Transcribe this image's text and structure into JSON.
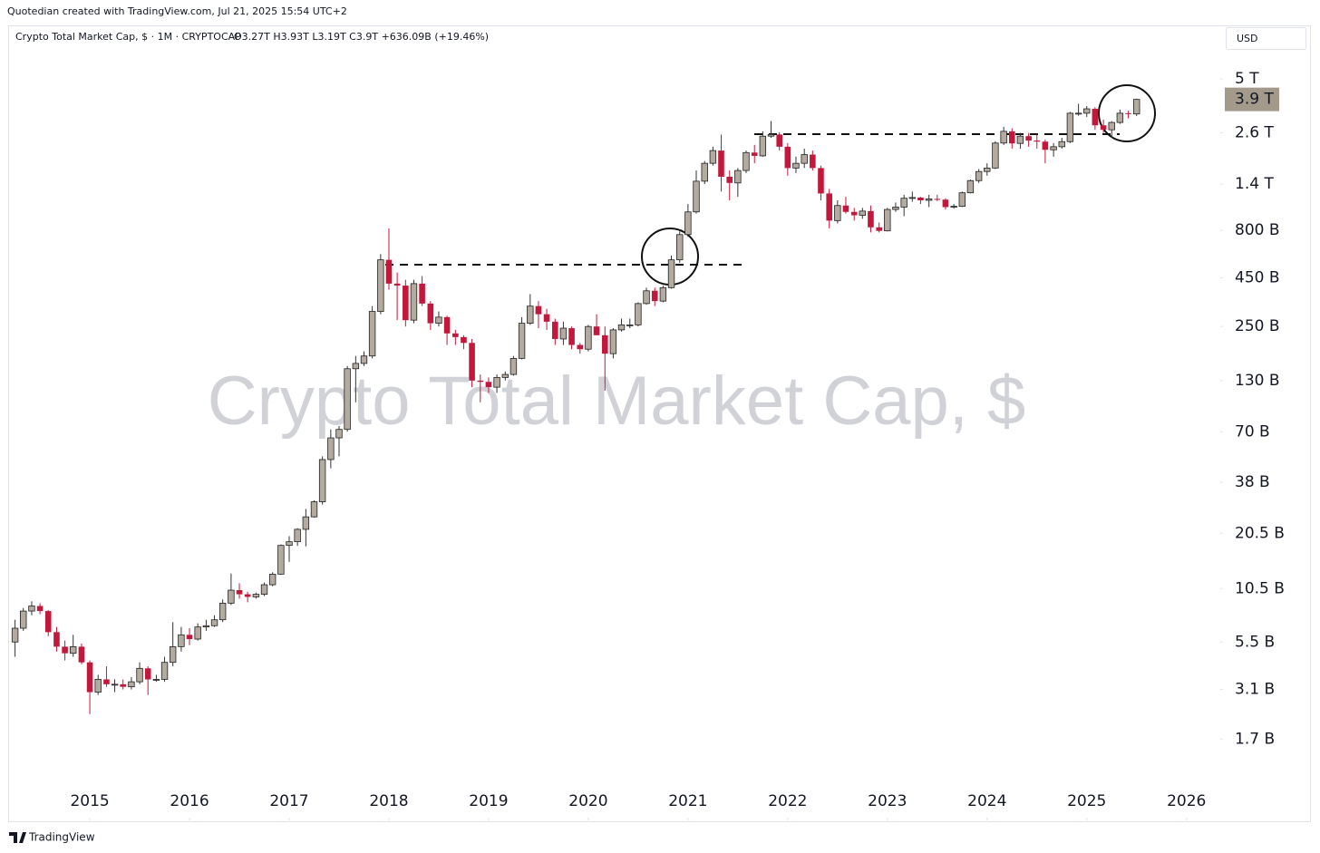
{
  "header": {
    "credit": "Quotedian created with TradingView.com, Jul 21, 2025 15:54 UTC+2",
    "brand": "TradingView"
  },
  "chart_data": {
    "type": "candlestick",
    "title": "Crypto Total Market Cap, $",
    "symbol_line": "Crypto Total Market Cap, $ · 1M · CRYPTOCAP",
    "ohlc_legend": "O3.27T H3.93T L3.19T C3.9T +636.09B (+19.46%)",
    "currency": "USD",
    "up_color": "#b3ab9f",
    "down_color": "#c2183c",
    "log_scale": true,
    "xlim": [
      2014.19,
      2026.33
    ],
    "xticks": [
      2015,
      2016,
      2017,
      2018,
      2019,
      2020,
      2021,
      2022,
      2023,
      2024,
      2025,
      2026
    ],
    "ylim": [
      636000000.0,
      9340000000000.0
    ],
    "yticks": [
      {
        "value": 5000000000000.0,
        "label": "5 T"
      },
      {
        "value": 2600000000000.0,
        "label": "2.6 T"
      },
      {
        "value": 1400000000000.0,
        "label": "1.4 T"
      },
      {
        "value": 800000000000.0,
        "label": "800 B"
      },
      {
        "value": 450000000000.0,
        "label": "450 B"
      },
      {
        "value": 250000000000.0,
        "label": "250 B"
      },
      {
        "value": 130000000000.0,
        "label": "130 B"
      },
      {
        "value": 70000000000.0,
        "label": "70 B"
      },
      {
        "value": 38000000000.0,
        "label": "38 B"
      },
      {
        "value": 20500000000.0,
        "label": "20.5 B"
      },
      {
        "value": 10500000000.0,
        "label": "10.5 B"
      },
      {
        "value": 5500000000.0,
        "label": "5.5 B"
      },
      {
        "value": 3100000000.0,
        "label": "3.1 B"
      },
      {
        "value": 1700000000.0,
        "label": "1.7 B"
      }
    ],
    "last_price_label": {
      "value": 3900000000000.0,
      "label": "3.9 T"
    },
    "last_label_color": "#a39a8c",
    "x": [
      2014.25,
      2014.333,
      2014.417,
      2014.5,
      2014.583,
      2014.667,
      2014.75,
      2014.833,
      2014.917,
      2015,
      2015.083,
      2015.167,
      2015.25,
      2015.333,
      2015.417,
      2015.5,
      2015.583,
      2015.667,
      2015.75,
      2015.833,
      2015.917,
      2016,
      2016.083,
      2016.167,
      2016.25,
      2016.333,
      2016.417,
      2016.5,
      2016.583,
      2016.667,
      2016.75,
      2016.833,
      2016.917,
      2017,
      2017.083,
      2017.167,
      2017.25,
      2017.333,
      2017.417,
      2017.5,
      2017.583,
      2017.667,
      2017.75,
      2017.833,
      2017.917,
      2018,
      2018.083,
      2018.167,
      2018.25,
      2018.333,
      2018.417,
      2018.5,
      2018.583,
      2018.667,
      2018.75,
      2018.833,
      2018.917,
      2019,
      2019.083,
      2019.167,
      2019.25,
      2019.333,
      2019.417,
      2019.5,
      2019.583,
      2019.667,
      2019.75,
      2019.833,
      2019.917,
      2020,
      2020.083,
      2020.167,
      2020.25,
      2020.333,
      2020.417,
      2020.5,
      2020.583,
      2020.667,
      2020.75,
      2020.833,
      2020.917,
      2021,
      2021.083,
      2021.167,
      2021.25,
      2021.333,
      2021.417,
      2021.5,
      2021.583,
      2021.667,
      2021.75,
      2021.833,
      2021.917,
      2022,
      2022.083,
      2022.167,
      2022.25,
      2022.333,
      2022.417,
      2022.5,
      2022.583,
      2022.667,
      2022.75,
      2022.833,
      2022.917,
      2023,
      2023.083,
      2023.167,
      2023.25,
      2023.333,
      2023.417,
      2023.5,
      2023.583,
      2023.667,
      2023.75,
      2023.833,
      2023.917,
      2024,
      2024.083,
      2024.167,
      2024.25,
      2024.333,
      2024.417,
      2024.5,
      2024.583,
      2024.667,
      2024.75,
      2024.833,
      2024.917,
      2025,
      2025.083,
      2025.167,
      2025.25,
      2025.333,
      2025.417,
      2025.5
    ],
    "open": [
      5500000000.0,
      6500000000.0,
      8000000000.0,
      8500000000.0,
      8000000000.0,
      6200000000.0,
      5200000000.0,
      4800000000.0,
      5200000000.0,
      4300000000.0,
      3000000000.0,
      3500000000.0,
      3300000000.0,
      3300000000.0,
      3200000000.0,
      3400000000.0,
      4000000000.0,
      3500000000.0,
      3500000000.0,
      4300000000.0,
      5200000000.0,
      6000000000.0,
      5700000000.0,
      6600000000.0,
      6700000000.0,
      7200000000.0,
      8800000000.0,
      10300000000.0,
      9800000000.0,
      9500000000.0,
      9800000000.0,
      11000000000.0,
      12500000000.0,
      17700000000.0,
      18500000000.0,
      21500000000.0,
      25000000000.0,
      30000000000.0,
      50000000000.0,
      65000000000.0,
      72000000000.0,
      150000000000.0,
      160000000000.0,
      175000000000.0,
      300000000000.0,
      560000000000.0,
      420000000000.0,
      410000000000.0,
      270000000000.0,
      420000000000.0,
      330000000000.0,
      260000000000.0,
      280000000000.0,
      230000000000.0,
      220000000000.0,
      205000000000.0,
      130000000000.0,
      128000000000.0,
      120000000000.0,
      135000000000.0,
      140000000000.0,
      170000000000.0,
      260000000000.0,
      320000000000.0,
      290000000000.0,
      265000000000.0,
      215000000000.0,
      245000000000.0,
      200000000000.0,
      190000000000.0,
      250000000000.0,
      225000000000.0,
      180000000000.0,
      240000000000.0,
      255000000000.0,
      255000000000.0,
      330000000000.0,
      385000000000.0,
      340000000000.0,
      400000000000.0,
      560000000000.0,
      760000000000.0,
      1000000000000.0,
      1450000000000.0,
      1800000000000.0,
      2100000000000.0,
      1530000000000.0,
      1420000000000.0,
      1650000000000.0,
      2050000000000.0,
      1970000000000.0,
      2500000000000.0,
      2550000000000.0,
      2200000000000.0,
      1700000000000.0,
      1800000000000.0,
      2000000000000.0,
      1700000000000.0,
      1250000000000.0,
      900000000000.0,
      1080000000000.0,
      1000000000000.0,
      960000000000.0,
      1010000000000.0,
      830000000000.0,
      795000000000.0,
      1030000000000.0,
      1060000000000.0,
      1180000000000.0,
      1190000000000.0,
      1150000000000.0,
      1170000000000.0,
      1160000000000.0,
      1060000000000.0,
      1070000000000.0,
      1260000000000.0,
      1460000000000.0,
      1630000000000.0,
      1700000000000.0,
      2300000000000.0,
      2650000000000.0,
      2290000000000.0,
      2500000000000.0,
      2370000000000.0,
      2340000000000.0,
      2120000000000.0,
      2200000000000.0,
      2340000000000.0,
      3300000000000.0,
      3300000000000.0,
      3480000000000.0,
      2850000000000.0,
      2700000000000.0,
      2950000000000.0,
      3300000000000.0,
      3270000000000.0
    ],
    "high": [
      7200000000.0,
      8300000000.0,
      9000000000.0,
      8800000000.0,
      8100000000.0,
      6600000000.0,
      5600000000.0,
      6000000000.0,
      5400000000.0,
      4400000000.0,
      3700000000.0,
      4100000000.0,
      3500000000.0,
      3500000000.0,
      3600000000.0,
      4300000000.0,
      4100000000.0,
      3700000000.0,
      4600000000.0,
      7000000000.0,
      6600000000.0,
      6500000000.0,
      6900000000.0,
      7200000000.0,
      7600000000.0,
      9200000000.0,
      12600000000.0,
      11200000000.0,
      10100000000.0,
      10000000000.0,
      11300000000.0,
      12800000000.0,
      17900000000.0,
      19800000000.0,
      21800000000.0,
      27500000000.0,
      30500000000.0,
      52000000000.0,
      72000000000.0,
      75000000000.0,
      155000000000.0,
      175000000000.0,
      185000000000.0,
      320000000000.0,
      600000000000.0,
      820000000000.0,
      480000000000.0,
      440000000000.0,
      440000000000.0,
      460000000000.0,
      340000000000.0,
      300000000000.0,
      285000000000.0,
      240000000000.0,
      225000000000.0,
      215000000000.0,
      140000000000.0,
      135000000000.0,
      140000000000.0,
      145000000000.0,
      175000000000.0,
      280000000000.0,
      370000000000.0,
      340000000000.0,
      310000000000.0,
      275000000000.0,
      265000000000.0,
      250000000000.0,
      205000000000.0,
      255000000000.0,
      290000000000.0,
      250000000000.0,
      245000000000.0,
      275000000000.0,
      275000000000.0,
      335000000000.0,
      400000000000.0,
      400000000000.0,
      410000000000.0,
      590000000000.0,
      790000000000.0,
      1100000000000.0,
      1650000000000.0,
      1850000000000.0,
      2200000000000.0,
      2550000000000.0,
      1650000000000.0,
      1700000000000.0,
      2100000000000.0,
      2250000000000.0,
      2650000000000.0,
      3000000000000.0,
      2620000000000.0,
      2300000000000.0,
      1950000000000.0,
      2150000000000.0,
      2100000000000.0,
      1750000000000.0,
      1320000000000.0,
      1150000000000.0,
      1200000000000.0,
      1050000000000.0,
      1050000000000.0,
      1080000000000.0,
      880000000000.0,
      1050000000000.0,
      1120000000000.0,
      1230000000000.0,
      1280000000000.0,
      1200000000000.0,
      1230000000000.0,
      1230000000000.0,
      1180000000000.0,
      1100000000000.0,
      1280000000000.0,
      1480000000000.0,
      1680000000000.0,
      1800000000000.0,
      2350000000000.0,
      2800000000000.0,
      2750000000000.0,
      2600000000000.0,
      2600000000000.0,
      2550000000000.0,
      2400000000000.0,
      2300000000000.0,
      2450000000000.0,
      3350000000000.0,
      3700000000000.0,
      3600000000000.0,
      3550000000000.0,
      3050000000000.0,
      3000000000000.0,
      3450000000000.0,
      3400000000000.0,
      3930000000000.0
    ],
    "low": [
      4600000000.0,
      6300000000.0,
      7600000000.0,
      7700000000.0,
      5900000000.0,
      4900000000.0,
      4400000000.0,
      4600000000.0,
      4200000000.0,
      2300000000.0,
      2900000000.0,
      3200000000.0,
      3000000000.0,
      3100000000.0,
      3100000000.0,
      3300000000.0,
      2900000000.0,
      3400000000.0,
      3400000000.0,
      4100000000.0,
      4900000000.0,
      5300000000.0,
      5600000000.0,
      6300000000.0,
      6600000000.0,
      7000000000.0,
      8600000000.0,
      9300000000.0,
      8900000000.0,
      9300000000.0,
      9600000000.0,
      10800000000.0,
      12400000000.0,
      14500000000.0,
      17600000000.0,
      17500000000.0,
      24800000000.0,
      29000000000.0,
      45000000000.0,
      52000000000.0,
      70000000000.0,
      100000000000.0,
      155000000000.0,
      170000000000.0,
      290000000000.0,
      390000000000.0,
      270000000000.0,
      250000000000.0,
      260000000000.0,
      320000000000.0,
      240000000000.0,
      250000000000.0,
      200000000000.0,
      200000000000.0,
      190000000000.0,
      120000000000.0,
      100000000000.0,
      112000000000.0,
      112000000000.0,
      130000000000.0,
      138000000000.0,
      168000000000.0,
      255000000000.0,
      245000000000.0,
      240000000000.0,
      200000000000.0,
      200000000000.0,
      190000000000.0,
      180000000000.0,
      185000000000.0,
      225000000000.0,
      115000000000.0,
      170000000000.0,
      235000000000.0,
      245000000000.0,
      250000000000.0,
      325000000000.0,
      320000000000.0,
      335000000000.0,
      395000000000.0,
      540000000000.0,
      740000000000.0,
      980000000000.0,
      1400000000000.0,
      1750000000000.0,
      1280000000000.0,
      1150000000000.0,
      1200000000000.0,
      1600000000000.0,
      1800000000000.0,
      1950000000000.0,
      2450000000000.0,
      2100000000000.0,
      1550000000000.0,
      1600000000000.0,
      1700000000000.0,
      1650000000000.0,
      1150000000000.0,
      820000000000.0,
      870000000000.0,
      980000000000.0,
      900000000000.0,
      920000000000.0,
      780000000000.0,
      780000000000.0,
      790000000000.0,
      1000000000000.0,
      950000000000.0,
      1130000000000.0,
      1100000000000.0,
      1060000000000.0,
      1140000000000.0,
      1030000000000.0,
      1040000000000.0,
      1060000000000.0,
      1250000000000.0,
      1420000000000.0,
      1550000000000.0,
      1680000000000.0,
      2250000000000.0,
      2150000000000.0,
      2150000000000.0,
      2200000000000.0,
      2150000000000.0,
      1800000000000.0,
      1950000000000.0,
      2150000000000.0,
      2300000000000.0,
      3200000000000.0,
      3150000000000.0,
      2700000000000.0,
      2600000000000.0,
      2450000000000.0,
      2900000000000.0,
      3100000000000.0,
      3190000000000.0
    ],
    "close": [
      6500000000.0,
      8000000000.0,
      8500000000.0,
      8000000000.0,
      6200000000.0,
      5200000000.0,
      4800000000.0,
      5200000000.0,
      4300000000.0,
      3000000000.0,
      3500000000.0,
      3300000000.0,
      3300000000.0,
      3200000000.0,
      3400000000.0,
      4000000000.0,
      3500000000.0,
      3500000000.0,
      4300000000.0,
      5200000000.0,
      6000000000.0,
      5700000000.0,
      6600000000.0,
      6700000000.0,
      7200000000.0,
      8800000000.0,
      10300000000.0,
      9800000000.0,
      9500000000.0,
      9800000000.0,
      11000000000.0,
      12500000000.0,
      17700000000.0,
      18500000000.0,
      21500000000.0,
      25000000000.0,
      30000000000.0,
      50000000000.0,
      65000000000.0,
      72000000000.0,
      150000000000.0,
      160000000000.0,
      175000000000.0,
      300000000000.0,
      560000000000.0,
      420000000000.0,
      410000000000.0,
      270000000000.0,
      420000000000.0,
      330000000000.0,
      260000000000.0,
      280000000000.0,
      230000000000.0,
      220000000000.0,
      205000000000.0,
      130000000000.0,
      128000000000.0,
      120000000000.0,
      135000000000.0,
      140000000000.0,
      170000000000.0,
      260000000000.0,
      320000000000.0,
      290000000000.0,
      265000000000.0,
      215000000000.0,
      245000000000.0,
      200000000000.0,
      190000000000.0,
      250000000000.0,
      225000000000.0,
      180000000000.0,
      240000000000.0,
      255000000000.0,
      255000000000.0,
      330000000000.0,
      385000000000.0,
      340000000000.0,
      400000000000.0,
      560000000000.0,
      760000000000.0,
      1000000000000.0,
      1450000000000.0,
      1800000000000.0,
      2100000000000.0,
      1530000000000.0,
      1420000000000.0,
      1650000000000.0,
      2050000000000.0,
      1970000000000.0,
      2500000000000.0,
      2550000000000.0,
      2200000000000.0,
      1700000000000.0,
      1800000000000.0,
      2000000000000.0,
      1700000000000.0,
      1250000000000.0,
      900000000000.0,
      1080000000000.0,
      1000000000000.0,
      960000000000.0,
      1010000000000.0,
      830000000000.0,
      795000000000.0,
      1030000000000.0,
      1060000000000.0,
      1180000000000.0,
      1190000000000.0,
      1150000000000.0,
      1170000000000.0,
      1160000000000.0,
      1060000000000.0,
      1070000000000.0,
      1260000000000.0,
      1460000000000.0,
      1630000000000.0,
      1700000000000.0,
      2300000000000.0,
      2650000000000.0,
      2290000000000.0,
      2500000000000.0,
      2370000000000.0,
      2340000000000.0,
      2120000000000.0,
      2200000000000.0,
      2340000000000.0,
      3300000000000.0,
      3300000000000.0,
      3480000000000.0,
      2850000000000.0,
      2700000000000.0,
      2950000000000.0,
      3300000000000.0,
      3270000000000.0,
      3900000000000.0
    ]
  }
}
